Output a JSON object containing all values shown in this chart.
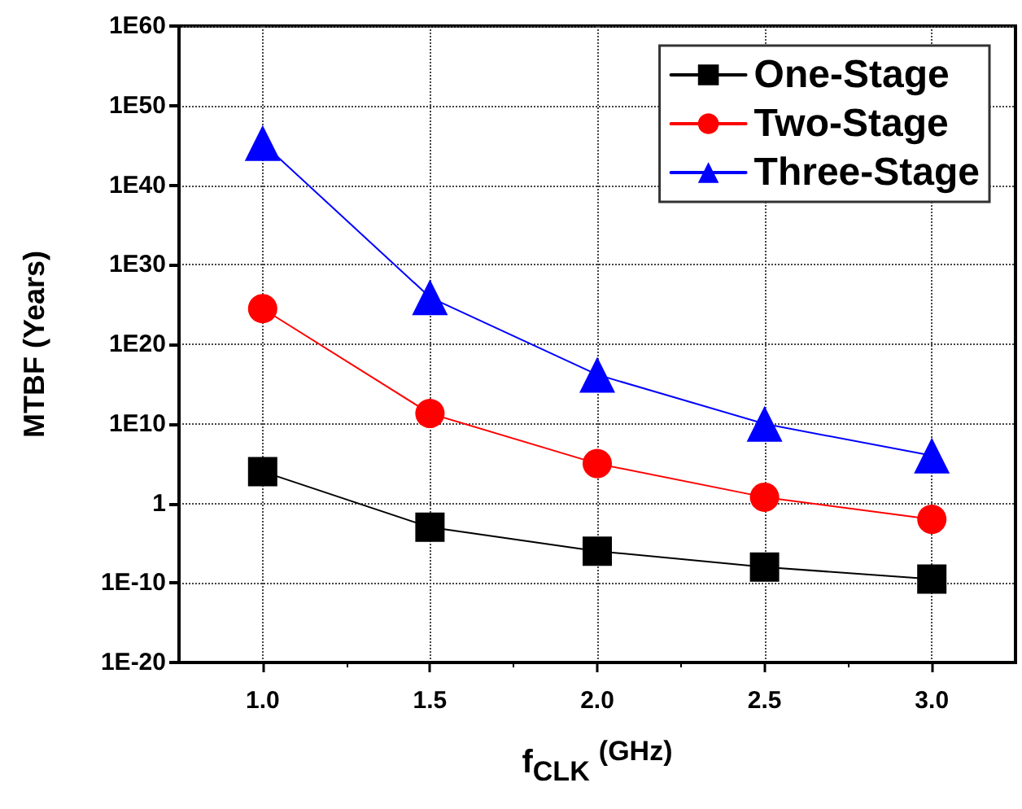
{
  "chart_data": {
    "type": "line",
    "xlabel": "f$_{CLK}$ $^{(GHz)}$",
    "ylabel": "MTBF (Years)",
    "x": [
      1.0,
      1.5,
      2.0,
      2.5,
      3.0
    ],
    "series": [
      {
        "name": "One-Stage",
        "color": "#000000",
        "marker": "square",
        "values": [
          10000.0,
          0.001,
          1e-06,
          1e-08,
          3e-10
        ]
      },
      {
        "name": "Two-Stage",
        "color": "#ff0000",
        "marker": "circle",
        "values": [
          3e+24,
          200000000000.0,
          100000.0,
          6,
          0.01
        ]
      },
      {
        "name": "Three-Stage",
        "color": "#0000ff",
        "marker": "triangle",
        "values": [
          2e+45,
          8e+25,
          1.5e+16,
          10000000000.0,
          1000000.0
        ]
      }
    ],
    "xlim": [
      0.75,
      3.25
    ],
    "xticks": [
      {
        "value": 1.0,
        "label": "1.0"
      },
      {
        "value": 1.5,
        "label": "1.5"
      },
      {
        "value": 2.0,
        "label": "2.0"
      },
      {
        "value": 2.5,
        "label": "2.5"
      },
      {
        "value": 3.0,
        "label": "3.0"
      }
    ],
    "ylim": [
      1e-20,
      1e+60
    ],
    "yticks": [
      {
        "value": 1e-20,
        "label": "1E-20"
      },
      {
        "value": 1e-10,
        "label": "1E-10"
      },
      {
        "value": 1,
        "label": "1"
      },
      {
        "value": 10000000000.0,
        "label": "1E10"
      },
      {
        "value": 1e+20,
        "label": "1E20"
      },
      {
        "value": 1e+30,
        "label": "1E30"
      },
      {
        "value": 1e+40,
        "label": "1E40"
      },
      {
        "value": 1e+50,
        "label": "1E50"
      },
      {
        "value": 1e+60,
        "label": "1E60"
      }
    ],
    "log": "y",
    "grid": true,
    "legend": "top right",
    "line_style": "solid"
  }
}
